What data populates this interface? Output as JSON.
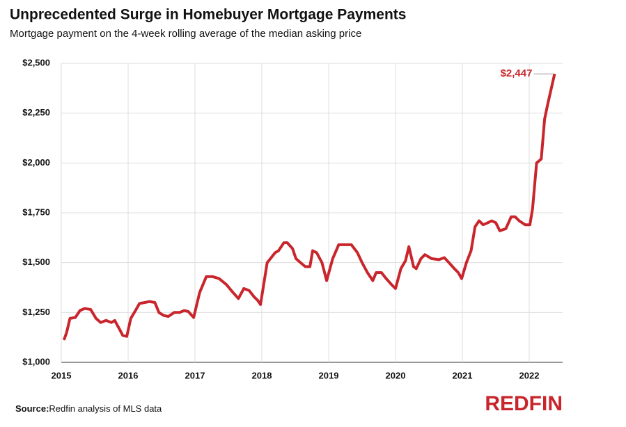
{
  "chart_data": {
    "type": "line",
    "title": "Unprecedented Surge in Homebuyer Mortgage Payments",
    "subtitle": "Mortgage payment on the 4-week rolling average of the median asking price",
    "xlim": [
      2015,
      2022.5
    ],
    "xticks": [
      2015,
      2016,
      2017,
      2018,
      2019,
      2020,
      2021,
      2022
    ],
    "ylim": [
      1000,
      2500
    ],
    "yticks": [
      {
        "value": 1000,
        "label": "$1,000"
      },
      {
        "value": 1250,
        "label": "$1,250"
      },
      {
        "value": 1500,
        "label": "$1,500"
      },
      {
        "value": 1750,
        "label": "$1,750"
      },
      {
        "value": 2000,
        "label": "$2,000"
      },
      {
        "value": 2250,
        "label": "$2,250"
      },
      {
        "value": 2500,
        "label": "$2,500"
      }
    ],
    "grid": true,
    "series": [
      {
        "color": "#c8262c",
        "x": [
          2015.04,
          2015.08,
          2015.13,
          2015.21,
          2015.28,
          2015.35,
          2015.44,
          2015.52,
          2015.59,
          2015.67,
          2015.75,
          2015.8,
          2015.88,
          2015.92,
          2015.98,
          2016.04,
          2016.11,
          2016.17,
          2016.25,
          2016.32,
          2016.4,
          2016.46,
          2016.53,
          2016.6,
          2016.69,
          2016.77,
          2016.84,
          2016.9,
          2016.98,
          2017.07,
          2017.17,
          2017.26,
          2017.36,
          2017.47,
          2017.57,
          2017.65,
          2017.73,
          2017.81,
          2017.88,
          2017.94,
          2017.98,
          2018.08,
          2018.2,
          2018.25,
          2018.33,
          2018.38,
          2018.46,
          2018.51,
          2018.58,
          2018.65,
          2018.72,
          2018.76,
          2018.82,
          2018.9,
          2018.97,
          2019.06,
          2019.15,
          2019.24,
          2019.34,
          2019.43,
          2019.5,
          2019.58,
          2019.66,
          2019.71,
          2019.79,
          2019.86,
          2019.94,
          2020.0,
          2020.08,
          2020.15,
          2020.2,
          2020.27,
          2020.31,
          2020.38,
          2020.44,
          2020.54,
          2020.65,
          2020.73,
          2020.8,
          2020.88,
          2020.94,
          2020.99,
          2021.06,
          2021.13,
          2021.19,
          2021.25,
          2021.31,
          2021.38,
          2021.44,
          2021.5,
          2021.56,
          2021.65,
          2021.73,
          2021.79,
          2021.85,
          2021.94,
          2022.01,
          2022.05,
          2022.11,
          2022.18,
          2022.23,
          2022.28,
          2022.38
        ],
        "values": [
          1112,
          1150,
          1220,
          1225,
          1260,
          1270,
          1265,
          1220,
          1200,
          1210,
          1200,
          1210,
          1160,
          1135,
          1130,
          1220,
          1260,
          1295,
          1300,
          1305,
          1300,
          1250,
          1235,
          1230,
          1250,
          1250,
          1260,
          1255,
          1225,
          1350,
          1430,
          1430,
          1420,
          1390,
          1350,
          1320,
          1370,
          1360,
          1330,
          1310,
          1290,
          1500,
          1550,
          1560,
          1600,
          1600,
          1570,
          1520,
          1500,
          1480,
          1480,
          1560,
          1550,
          1500,
          1410,
          1520,
          1590,
          1590,
          1590,
          1550,
          1500,
          1450,
          1410,
          1450,
          1450,
          1420,
          1390,
          1370,
          1470,
          1510,
          1580,
          1480,
          1470,
          1520,
          1540,
          1520,
          1515,
          1525,
          1500,
          1470,
          1450,
          1420,
          1500,
          1560,
          1680,
          1710,
          1690,
          1700,
          1710,
          1700,
          1660,
          1670,
          1730,
          1730,
          1710,
          1690,
          1690,
          1770,
          2000,
          2020,
          2220,
          2300,
          2447
        ]
      }
    ],
    "annotation": {
      "value": 2447,
      "label": "$2,447"
    },
    "source_label": "Source:",
    "source_text": "Redfin analysis of MLS data",
    "logo": "REDFIN"
  }
}
